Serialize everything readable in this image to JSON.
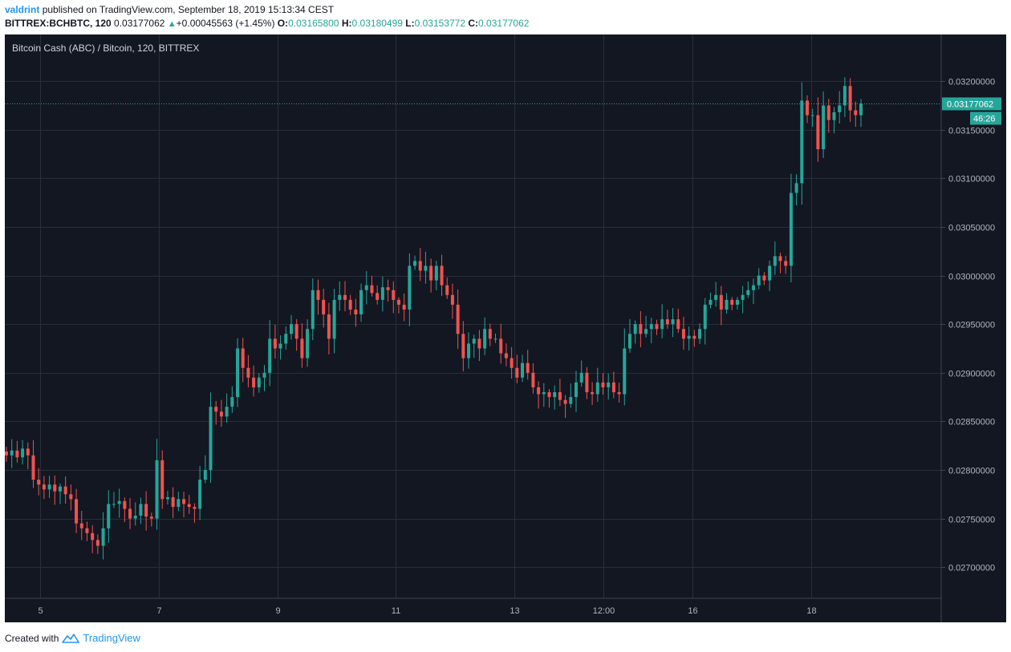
{
  "header": {
    "user": "valdrint",
    "published_text": "published on TradingView.com, September 18, 2019 15:13:34 CEST",
    "symbol": "BITTREX:BCHBTC, 120",
    "last": "0.03177062",
    "change": "+0.00045563 (+1.45%)",
    "open_label": "O:",
    "open": "0.03165800",
    "high_label": "H:",
    "high": "0.03180499",
    "low_label": "L:",
    "low": "0.03153772",
    "close_label": "C:",
    "close": "0.03177062"
  },
  "footer": {
    "created_with": "Created with",
    "brand": "TradingView"
  },
  "colors": {
    "up": "#26a69a",
    "down": "#ef5350",
    "background": "#131722",
    "grid": "#2a2e39",
    "text": "#b2b5be",
    "brand": "#2196f3"
  },
  "chart_data": {
    "type": "candlestick",
    "title": "Bitcoin Cash (ABC) / Bitcoin, 120, BITTREX",
    "y_ticks": [
      "0.02700000",
      "0.02750000",
      "0.02800000",
      "0.02850000",
      "0.02900000",
      "0.02950000",
      "0.03000000",
      "0.03050000",
      "0.03100000",
      "0.03150000",
      "0.03200000"
    ],
    "x_ticks": [
      "5",
      "7",
      "9",
      "11",
      "13",
      "12:00",
      "16",
      "18"
    ],
    "ylim": [
      0.02668,
      0.03248
    ],
    "x_tick_positions": [
      5,
      7,
      9,
      11,
      13,
      14.5,
      16,
      18
    ],
    "xlim": [
      4.4,
      20.2
    ],
    "last_price": "0.03177062",
    "countdown": "46:26",
    "grid": true,
    "candles_price_path": [
      0.02815,
      0.0282,
      0.02813,
      0.02822,
      0.02815,
      0.0279,
      0.02785,
      0.0278,
      0.02785,
      0.02778,
      0.02783,
      0.02775,
      0.0277,
      0.02745,
      0.0274,
      0.02735,
      0.02728,
      0.02722,
      0.0274,
      0.02765,
      0.02765,
      0.02768,
      0.0276,
      0.0275,
      0.02753,
      0.02765,
      0.02752,
      0.0275,
      0.0281,
      0.0277,
      0.02772,
      0.02762,
      0.0277,
      0.02765,
      0.02762,
      0.0276,
      0.0279,
      0.028,
      0.02865,
      0.0286,
      0.02855,
      0.02865,
      0.02875,
      0.02925,
      0.02905,
      0.02895,
      0.02885,
      0.02895,
      0.029,
      0.02935,
      0.02925,
      0.0293,
      0.0294,
      0.0295,
      0.02935,
      0.02915,
      0.02945,
      0.02985,
      0.02975,
      0.0296,
      0.02935,
      0.02975,
      0.0298,
      0.02975,
      0.02965,
      0.0296,
      0.02985,
      0.0299,
      0.02982,
      0.02975,
      0.02988,
      0.02985,
      0.02975,
      0.0297,
      0.02965,
      0.0301,
      0.03015,
      0.03005,
      0.0301,
      0.02995,
      0.0301,
      0.0299,
      0.0298,
      0.0297,
      0.0294,
      0.02915,
      0.0293,
      0.02935,
      0.02925,
      0.02945,
      0.02935,
      0.02935,
      0.0292,
      0.02915,
      0.02905,
      0.02895,
      0.0291,
      0.029,
      0.02885,
      0.02878,
      0.0288,
      0.02875,
      0.0288,
      0.02872,
      0.02868,
      0.02875,
      0.0289,
      0.029,
      0.0288,
      0.02878,
      0.0289,
      0.02885,
      0.0289,
      0.0288,
      0.02878,
      0.02925,
      0.0294,
      0.0295,
      0.0294,
      0.02945,
      0.0295,
      0.02945,
      0.02955,
      0.0295,
      0.02955,
      0.02945,
      0.02935,
      0.02938,
      0.02935,
      0.02945,
      0.0297,
      0.02975,
      0.0298,
      0.02965,
      0.02975,
      0.0297,
      0.02975,
      0.0298,
      0.02985,
      0.0299,
      0.03,
      0.02995,
      0.0301,
      0.0302,
      0.03015,
      0.0301,
      0.03085,
      0.03095,
      0.0318,
      0.03165,
      0.03165,
      0.0313,
      0.03175,
      0.0316,
      0.03168,
      0.03175,
      0.03195,
      0.0317,
      0.03165,
      0.03177
    ]
  }
}
